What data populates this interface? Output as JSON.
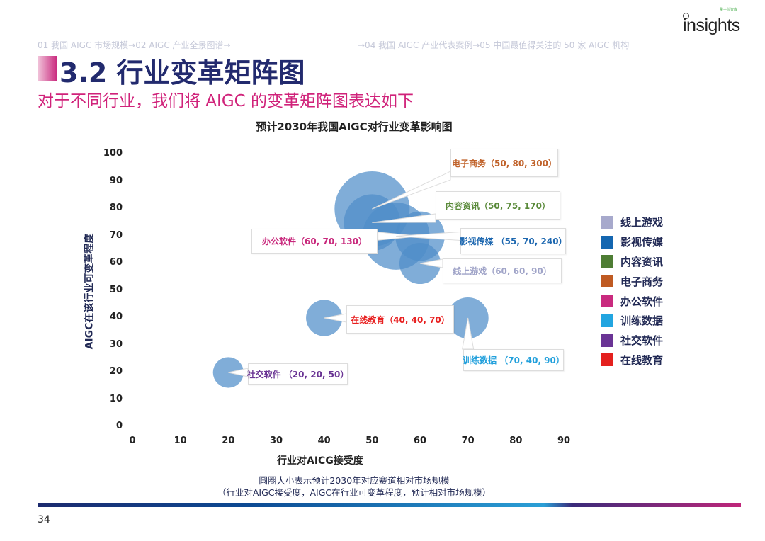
{
  "header": {
    "logo_text": "insights",
    "logo_sub": "量子位智库",
    "breadcrumb_left": "01 我国 AIGC 市场规模→02 AIGC 产业全景图谱→",
    "breadcrumb_right": "→04 我国 AIGC 产业代表案例→05 中国最值得关注的 50 家 AIGC 机构"
  },
  "title": "3.2 行业变革矩阵图",
  "subtitle": "对于不同行业，我们将 AIGC 的变革矩阵图表达如下",
  "chart_data": {
    "type": "scatter",
    "subtype": "bubble",
    "title": "预计2030年我国AIGC对行业变革影响图",
    "xlabel": "行业对AICG接受度",
    "ylabel": "AIGC在该行业可变革程度",
    "xlim": [
      0,
      90
    ],
    "ylim": [
      0,
      100
    ],
    "xticks": [
      0,
      10,
      20,
      30,
      40,
      50,
      60,
      70,
      80,
      90
    ],
    "yticks": [
      0,
      10,
      20,
      30,
      40,
      50,
      60,
      70,
      80,
      90,
      100
    ],
    "bubble_color": "#4f8dc9",
    "legend_position": "right",
    "series": [
      {
        "name": "电子商务",
        "x": 50,
        "y": 80,
        "size": 300,
        "label": "电子商务（50, 80, 300）",
        "color": "#c0622a"
      },
      {
        "name": "内容资讯",
        "x": 50,
        "y": 75,
        "size": 170,
        "label": "内容资讯（50, 75, 170）",
        "color": "#5a8a3a"
      },
      {
        "name": "办公软件",
        "x": 60,
        "y": 70,
        "size": 130,
        "label": "办公软件（60, 70, 130）",
        "color": "#c8287c"
      },
      {
        "name": "影视传媒",
        "x": 55,
        "y": 70,
        "size": 240,
        "label": "影视传媒 （55, 70, 240）",
        "color": "#1e68b0"
      },
      {
        "name": "线上游戏",
        "x": 60,
        "y": 60,
        "size": 90,
        "label": "线上游戏（60, 60, 90）",
        "color": "#a0a4c8"
      },
      {
        "name": "在线教育",
        "x": 40,
        "y": 40,
        "size": 70,
        "label": "在线教育（40, 40, 70）",
        "color": "#e82020"
      },
      {
        "name": "训练数据",
        "x": 70,
        "y": 40,
        "size": 90,
        "label": "训练数据 （70, 40, 90）",
        "color": "#22a0dc"
      },
      {
        "name": "社交软件",
        "x": 20,
        "y": 20,
        "size": 50,
        "label": "社交软件 （20, 20, 50）",
        "color": "#6a3494"
      }
    ],
    "legend": [
      {
        "name": "线上游戏",
        "color": "#a7a9cc"
      },
      {
        "name": "影视传媒",
        "color": "#1466b0"
      },
      {
        "name": "内容资讯",
        "color": "#4e7d34"
      },
      {
        "name": "电子商务",
        "color": "#bf5a22"
      },
      {
        "name": "办公软件",
        "color": "#c92a7e"
      },
      {
        "name": "训练数据",
        "color": "#22a5e0"
      },
      {
        "name": "社交软件",
        "color": "#6a3495"
      },
      {
        "name": "在线教育",
        "color": "#e4201e"
      }
    ]
  },
  "notes": {
    "line1": "圆圈大小表示预计2030年对应赛道相对市场规模",
    "line2": "（行业对AIGC接受度，AIGC在行业可变革程度，预计相对市场规模）"
  },
  "page_number": "34"
}
